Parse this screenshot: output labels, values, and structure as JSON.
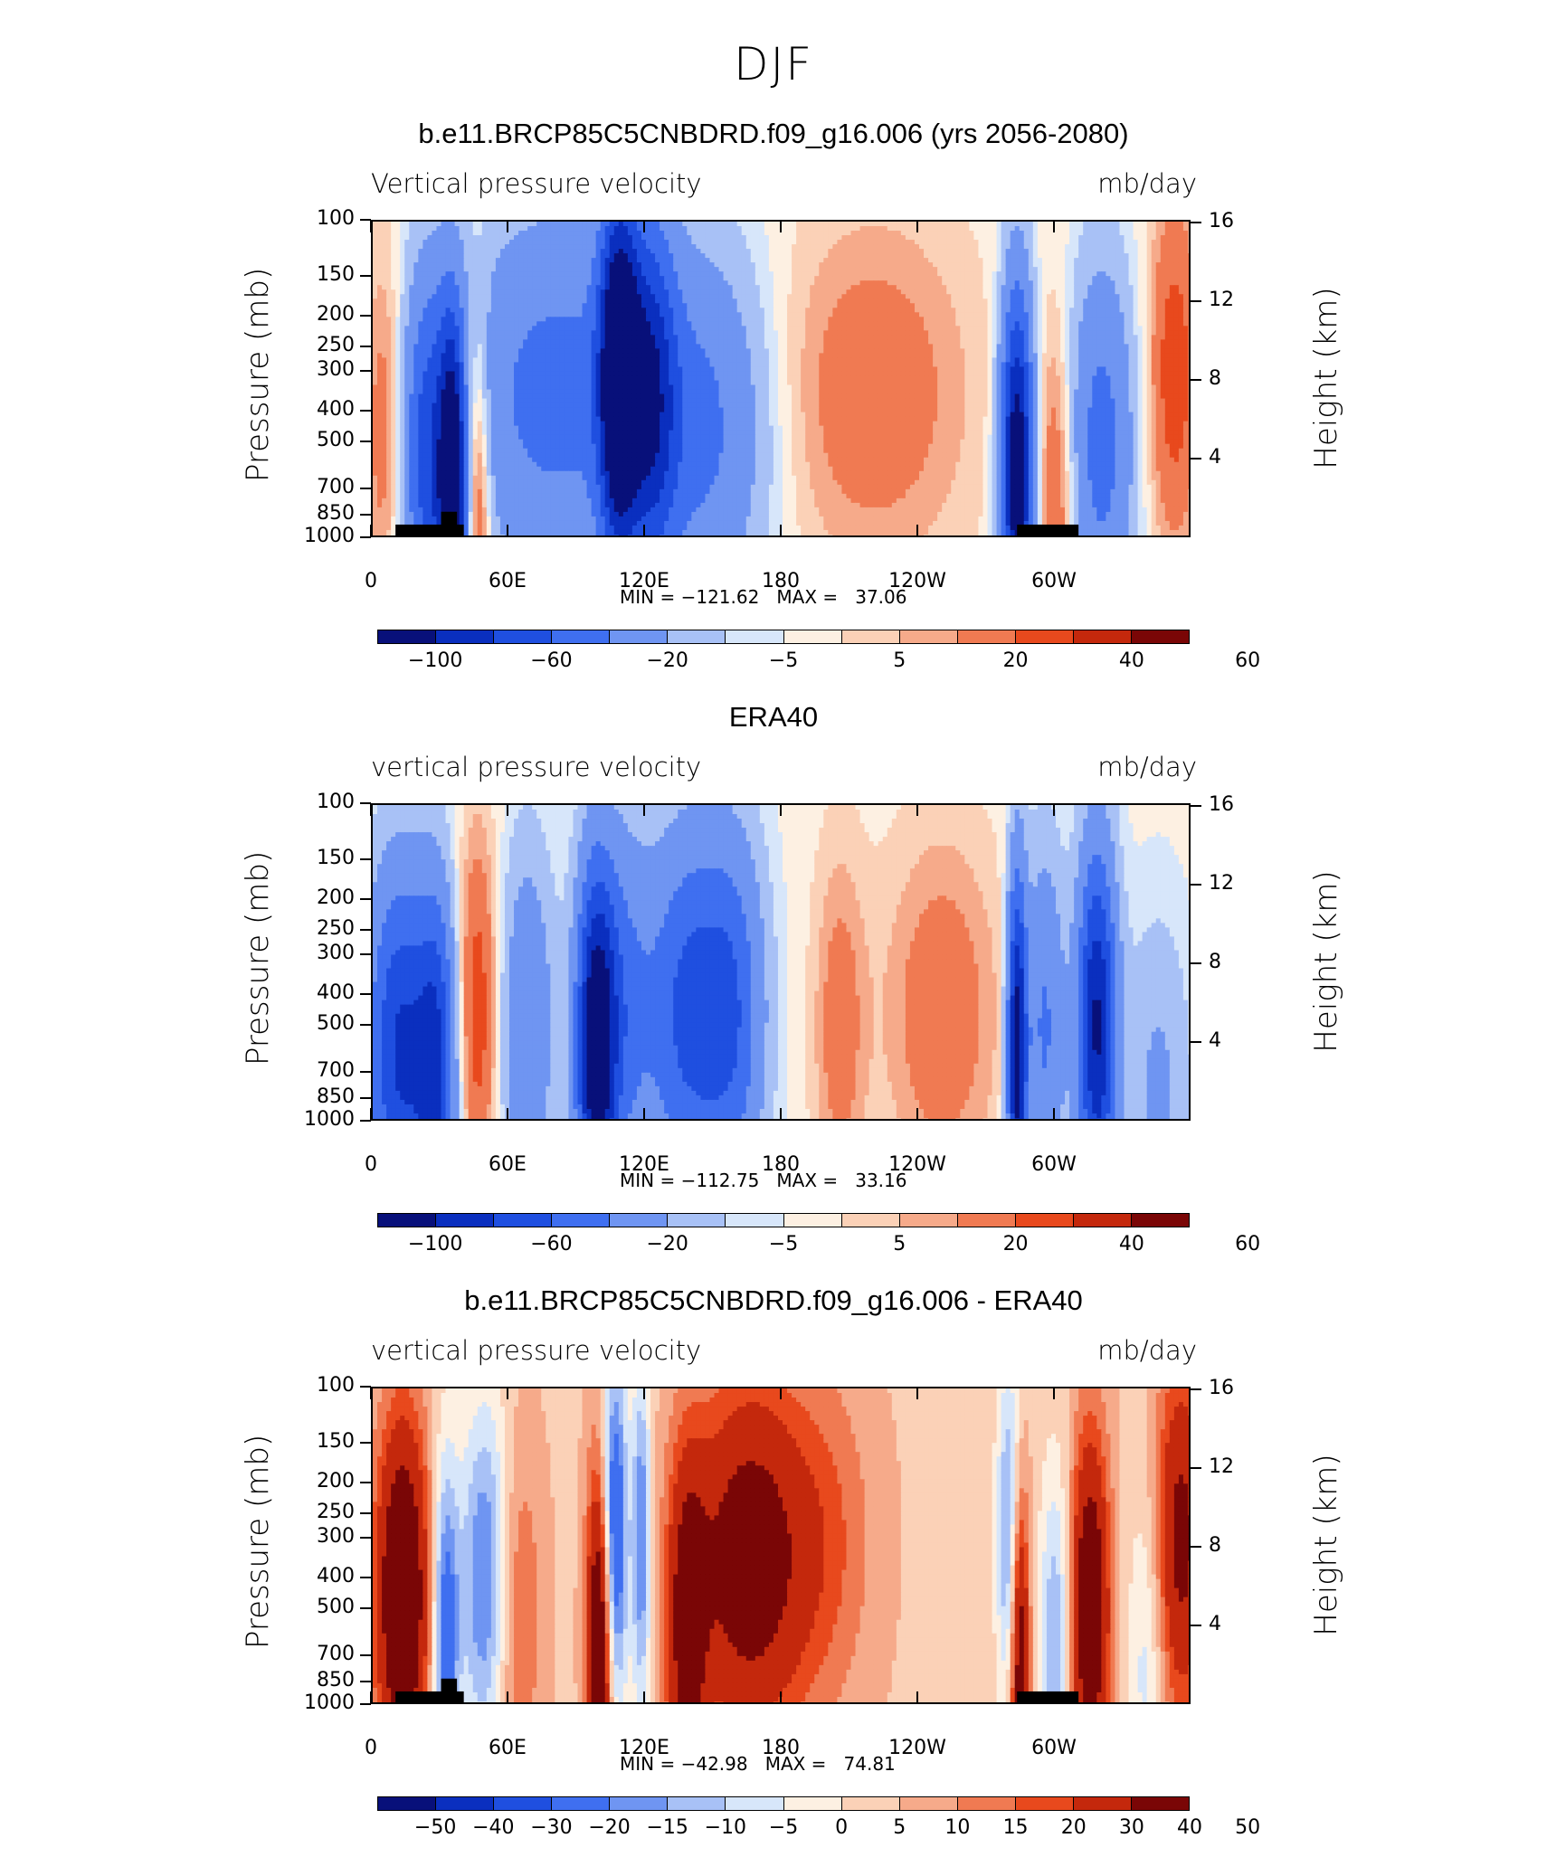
{
  "page": {
    "title": "DJF"
  },
  "colors": {
    "palette": [
      "#08107a",
      "#0a2fbf",
      "#1f4fe0",
      "#3f6ff0",
      "#6f95f2",
      "#a8c1f6",
      "#d7e6fa",
      "#fdf0e2",
      "#fbd1b7",
      "#f6aa8a",
      "#f07a52",
      "#e8491d",
      "#c4280c",
      "#7a0606"
    ]
  },
  "y_axis": {
    "left_title": "Pressure (mb)",
    "right_title": "Height (km)",
    "pressure_ticks": [
      "100",
      "150",
      "200",
      "250",
      "300",
      "400",
      "500",
      "700",
      "850",
      "1000"
    ],
    "pressure_values": [
      100,
      150,
      200,
      250,
      300,
      400,
      500,
      700,
      850,
      1000
    ],
    "height_ticks": [
      "16",
      "12",
      "8",
      "4"
    ],
    "height_values": [
      16,
      12,
      8,
      4
    ]
  },
  "x_axis": {
    "tick_labels": [
      "0",
      "60E",
      "120E",
      "180",
      "120W",
      "60W"
    ],
    "tick_lons": [
      0,
      60,
      120,
      180,
      240,
      300
    ],
    "range": [
      0,
      360
    ]
  },
  "chart_data": [
    {
      "type": "heatmap",
      "title": "b.e11.BRCP85C5CNBDRD.f09_g16.006 (yrs 2056-2080)",
      "variable": "Vertical pressure velocity",
      "units": "mb/day",
      "min_label": "MIN = −121.62",
      "max_label": "MAX =   37.06",
      "min": -121.62,
      "max": 37.06,
      "colorbar_labels": [
        "−100",
        "−60",
        "−20",
        "−5",
        "5",
        "20",
        "40",
        "60"
      ],
      "features": [
        {
          "lon": 5,
          "width": 6,
          "p": 450,
          "value": 20
        },
        {
          "lon": 25,
          "width": 8,
          "p": 550,
          "value": -65
        },
        {
          "lon": 35,
          "width": 4,
          "p": 800,
          "value": -110
        },
        {
          "lon": 46,
          "width": 4,
          "p": 700,
          "value": 35
        },
        {
          "lon": 80,
          "width": 30,
          "p": 350,
          "value": -45
        },
        {
          "lon": 108,
          "width": 6,
          "p": 300,
          "value": -120
        },
        {
          "lon": 122,
          "width": 8,
          "p": 350,
          "value": -70
        },
        {
          "lon": 145,
          "width": 20,
          "p": 450,
          "value": -40
        },
        {
          "lon": 220,
          "width": 30,
          "p": 350,
          "value": 20
        },
        {
          "lon": 283,
          "width": 5,
          "p": 600,
          "value": -120
        },
        {
          "lon": 300,
          "width": 6,
          "p": 800,
          "value": 25
        },
        {
          "lon": 320,
          "width": 10,
          "p": 500,
          "value": -45
        },
        {
          "lon": 352,
          "width": 8,
          "p": 300,
          "value": 30
        }
      ],
      "has_topography": true
    },
    {
      "type": "heatmap",
      "title": "ERA40",
      "variable": "vertical pressure velocity",
      "units": "mb/day",
      "min_label": "MIN = −112.75",
      "max_label": "MAX =   33.16",
      "min": -112.75,
      "max": 33.16,
      "colorbar_labels": [
        "−100",
        "−60",
        "−20",
        "−5",
        "5",
        "20",
        "40",
        "60"
      ],
      "features": [
        {
          "lon": 12,
          "width": 10,
          "p": 600,
          "value": -80
        },
        {
          "lon": 28,
          "width": 6,
          "p": 700,
          "value": -70
        },
        {
          "lon": 46,
          "width": 6,
          "p": 450,
          "value": 30
        },
        {
          "lon": 68,
          "width": 8,
          "p": 500,
          "value": -35
        },
        {
          "lon": 98,
          "width": 6,
          "p": 600,
          "value": -105
        },
        {
          "lon": 108,
          "width": 10,
          "p": 450,
          "value": -45
        },
        {
          "lon": 138,
          "width": 12,
          "p": 450,
          "value": -60
        },
        {
          "lon": 158,
          "width": 10,
          "p": 450,
          "value": -50
        },
        {
          "lon": 205,
          "width": 8,
          "p": 500,
          "value": 18
        },
        {
          "lon": 250,
          "width": 18,
          "p": 450,
          "value": 20
        },
        {
          "lon": 283,
          "width": 3,
          "p": 600,
          "value": -110
        },
        {
          "lon": 295,
          "width": 6,
          "p": 500,
          "value": -40
        },
        {
          "lon": 318,
          "width": 6,
          "p": 500,
          "value": -100
        },
        {
          "lon": 345,
          "width": 10,
          "p": 850,
          "value": -20
        }
      ],
      "has_topography": false
    },
    {
      "type": "heatmap",
      "title": "b.e11.BRCP85C5CNBDRD.f09_g16.006 - ERA40",
      "variable": "vertical pressure velocity",
      "units": "mb/day",
      "min_label": "MIN = −42.98",
      "max_label": "MAX =   74.81",
      "min": -42.98,
      "max": 74.81,
      "colorbar_labels": [
        "−50",
        "−40",
        "−30",
        "−20",
        "−15",
        "−10",
        "−5",
        "0",
        "5",
        "10",
        "15",
        "20",
        "30",
        "40",
        "50"
      ],
      "features": [
        {
          "lon": 13,
          "width": 8,
          "p": 450,
          "value": 45
        },
        {
          "lon": 32,
          "width": 4,
          "p": 600,
          "value": -30
        },
        {
          "lon": 50,
          "width": 8,
          "p": 400,
          "value": -28
        },
        {
          "lon": 62,
          "width": 8,
          "p": 500,
          "value": 15
        },
        {
          "lon": 100,
          "width": 4,
          "p": 600,
          "value": 45
        },
        {
          "lon": 106,
          "width": 4,
          "p": 300,
          "value": -40
        },
        {
          "lon": 118,
          "width": 3,
          "p": 300,
          "value": -25
        },
        {
          "lon": 138,
          "width": 6,
          "p": 600,
          "value": 30
        },
        {
          "lon": 165,
          "width": 18,
          "p": 350,
          "value": 35
        },
        {
          "lon": 200,
          "width": 15,
          "p": 300,
          "value": 10
        },
        {
          "lon": 280,
          "width": 4,
          "p": 300,
          "value": -25
        },
        {
          "lon": 284,
          "width": 3,
          "p": 650,
          "value": 40
        },
        {
          "lon": 300,
          "width": 5,
          "p": 650,
          "value": -20
        },
        {
          "lon": 315,
          "width": 6,
          "p": 500,
          "value": 40
        },
        {
          "lon": 340,
          "width": 6,
          "p": 700,
          "value": -12
        },
        {
          "lon": 355,
          "width": 8,
          "p": 300,
          "value": 30
        }
      ],
      "has_topography": true
    }
  ]
}
